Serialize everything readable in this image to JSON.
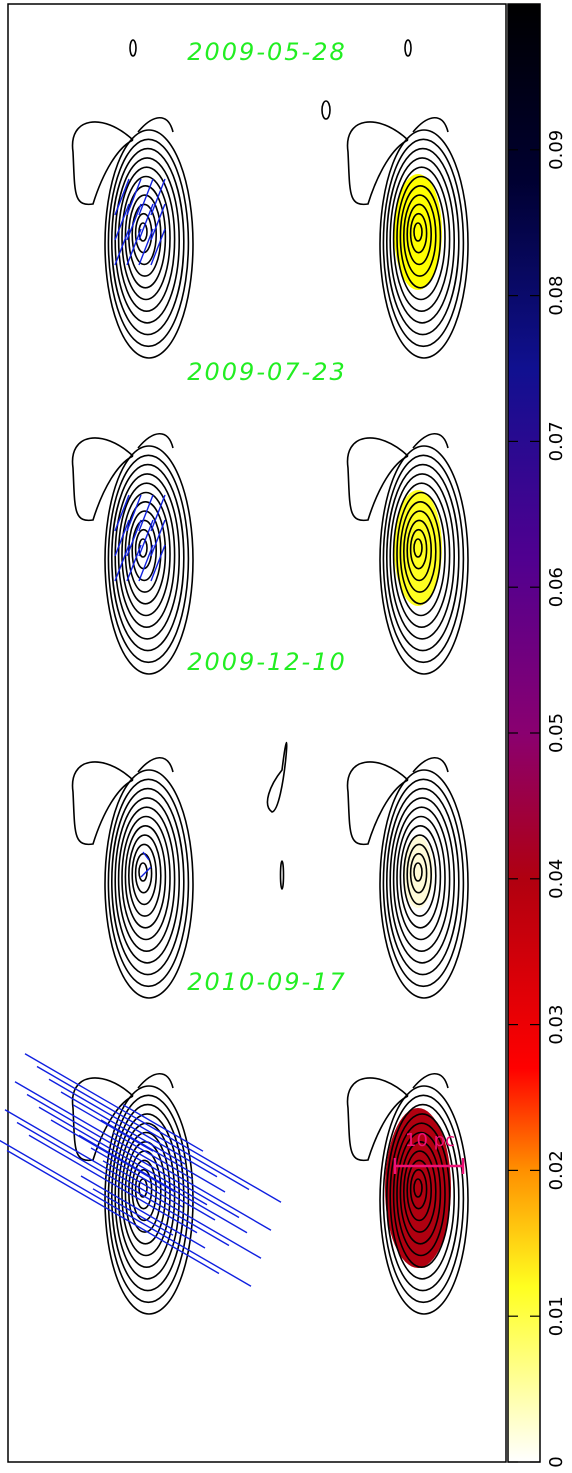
{
  "epochs": [
    "2009-05-28",
    "2009-07-23",
    "2009-12-10",
    "2010-09-17"
  ],
  "colorbar": {
    "lim": [
      0,
      0.1
    ],
    "ticks": [
      0,
      0.01,
      0.02,
      0.03,
      0.04,
      0.05,
      0.06,
      0.07,
      0.08,
      0.09
    ]
  },
  "scale_bar": "10 pc"
}
